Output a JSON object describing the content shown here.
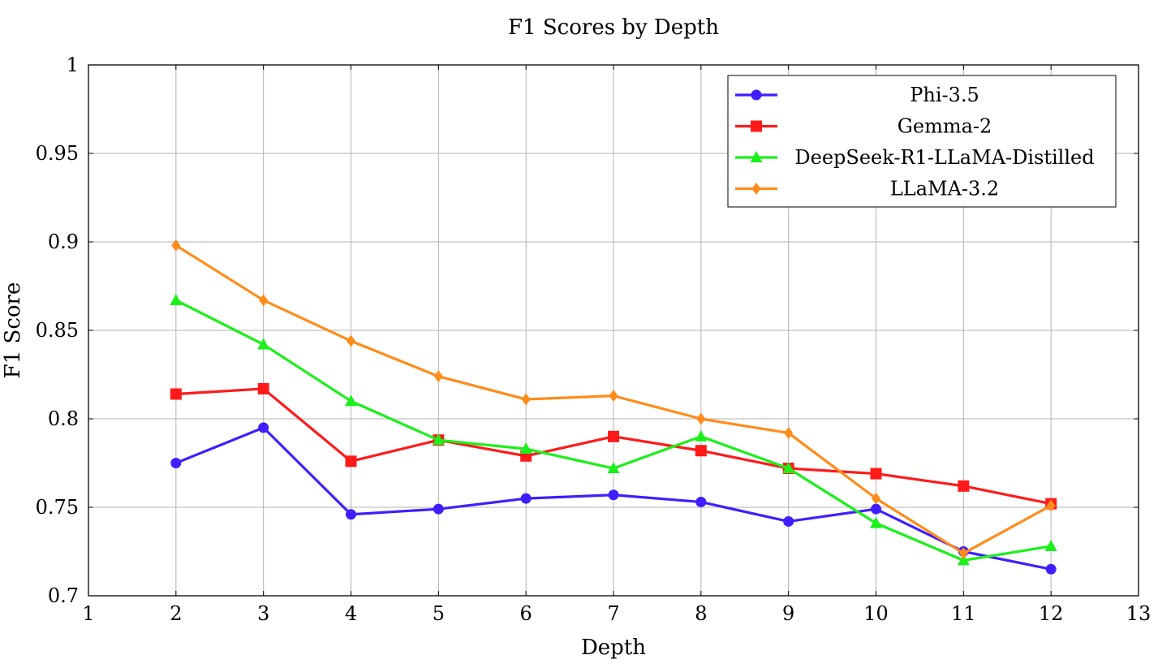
{
  "chart_data": {
    "type": "line",
    "title": "F1 Scores by Depth",
    "xlabel": "Depth",
    "ylabel": "F1 Score",
    "xlim": [
      1,
      13
    ],
    "ylim": [
      0.7,
      1.0
    ],
    "x_ticks": [
      1,
      2,
      3,
      4,
      5,
      6,
      7,
      8,
      9,
      10,
      11,
      12,
      13
    ],
    "x_tick_labels": [
      "1",
      "2",
      "3",
      "4",
      "5",
      "6",
      "7",
      "8",
      "9",
      "10",
      "11",
      "12",
      "13"
    ],
    "y_ticks": [
      0.7,
      0.75,
      0.8,
      0.85,
      0.9,
      0.95,
      1.0
    ],
    "y_tick_labels": [
      "0.7",
      "0.75",
      "0.8",
      "0.85",
      "0.9",
      "0.95",
      "1"
    ],
    "grid": true,
    "legend_position": "top-right",
    "x": [
      2,
      3,
      4,
      5,
      6,
      7,
      8,
      9,
      10,
      11,
      12
    ],
    "series": [
      {
        "name": "Phi-3.5",
        "color": "#3f1fff",
        "marker": "circle",
        "values": [
          0.775,
          0.795,
          0.746,
          0.749,
          0.755,
          0.757,
          0.753,
          0.742,
          0.749,
          0.725,
          0.715
        ]
      },
      {
        "name": "Gemma-2",
        "color": "#ff1a1a",
        "marker": "square",
        "values": [
          0.814,
          0.817,
          0.776,
          0.788,
          0.779,
          0.79,
          0.782,
          0.772,
          0.769,
          0.762,
          0.752
        ]
      },
      {
        "name": "DeepSeek-R1-LLaMA-Distilled",
        "color": "#1af01a",
        "marker": "triangle",
        "values": [
          0.867,
          0.842,
          0.81,
          0.788,
          0.783,
          0.772,
          0.79,
          0.772,
          0.741,
          0.72,
          0.728
        ]
      },
      {
        "name": "LLaMA-3.2",
        "color": "#ff8c1a",
        "marker": "diamond",
        "values": [
          0.898,
          0.867,
          0.844,
          0.824,
          0.811,
          0.813,
          0.8,
          0.792,
          0.755,
          0.724,
          0.751
        ]
      }
    ]
  }
}
